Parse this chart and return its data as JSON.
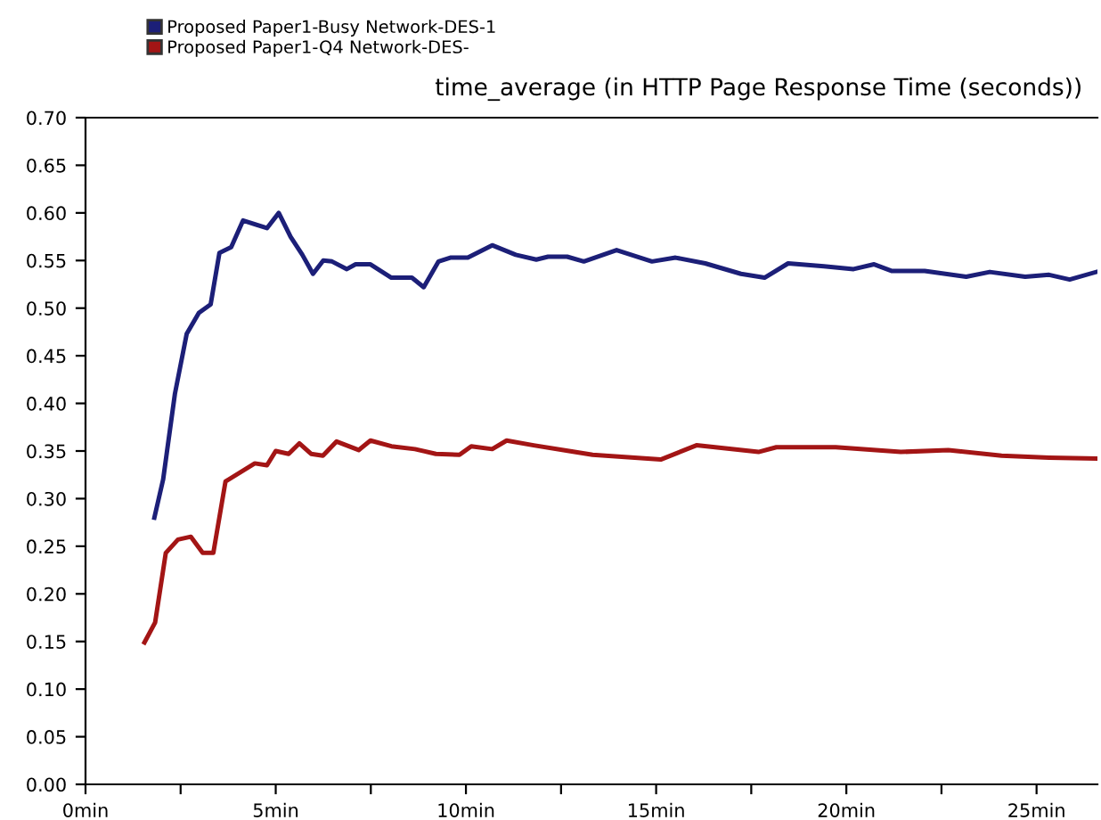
{
  "chart_data": {
    "type": "line",
    "title": "time_average (in HTTP Page Response Time (seconds))",
    "xlim": [
      0,
      26.6
    ],
    "xticks": [
      {
        "value": 0,
        "label": "0min"
      },
      {
        "value": 2.5,
        "label": null
      },
      {
        "value": 5,
        "label": "5min"
      },
      {
        "value": 7.5,
        "label": null
      },
      {
        "value": 10,
        "label": "10min"
      },
      {
        "value": 12.5,
        "label": null
      },
      {
        "value": 15,
        "label": "15min"
      },
      {
        "value": 17.5,
        "label": null
      },
      {
        "value": 20,
        "label": "20min"
      },
      {
        "value": 22.5,
        "label": null
      },
      {
        "value": 25,
        "label": "25min"
      }
    ],
    "ylim": [
      0,
      0.7
    ],
    "yticks": [
      {
        "value": 0,
        "label": "0.00"
      },
      {
        "value": 0.05,
        "label": "0.05"
      },
      {
        "value": 0.1,
        "label": "0.10"
      },
      {
        "value": 0.15,
        "label": "0.15"
      },
      {
        "value": 0.2,
        "label": "0.20"
      },
      {
        "value": 0.25,
        "label": "0.25"
      },
      {
        "value": 0.3,
        "label": "0.30"
      },
      {
        "value": 0.35,
        "label": "0.35"
      },
      {
        "value": 0.4,
        "label": "0.40"
      },
      {
        "value": 0.45,
        "label": "0.45"
      },
      {
        "value": 0.5,
        "label": "0.50"
      },
      {
        "value": 0.55,
        "label": "0.55"
      },
      {
        "value": 0.6,
        "label": "0.60"
      },
      {
        "value": 0.65,
        "label": "0.65"
      },
      {
        "value": 0.7,
        "label": "0.70"
      }
    ],
    "grid": false,
    "legend": "top left",
    "marker": "none",
    "line_style": "solid",
    "series": [
      {
        "name": "Proposed Paper1-Busy Network-DES-1",
        "color": "#1c1f78",
        "x": [
          1.81,
          2.04,
          2.35,
          2.66,
          2.98,
          3.29,
          3.52,
          3.83,
          4.14,
          4.77,
          5.08,
          5.39,
          5.7,
          5.98,
          6.25,
          6.48,
          6.87,
          7.1,
          7.49,
          8.04,
          8.58,
          8.89,
          9.28,
          9.59,
          10.05,
          10.69,
          11.31,
          11.85,
          12.16,
          12.66,
          13.1,
          13.96,
          14.89,
          15.51,
          16.29,
          17.23,
          17.85,
          18.47,
          19.41,
          20.19,
          20.73,
          21.2,
          22.06,
          23.15,
          23.77,
          24.7,
          25.33,
          25.87,
          26.57
        ],
        "values": [
          0.28,
          0.32,
          0.41,
          0.473,
          0.495,
          0.504,
          0.558,
          0.564,
          0.592,
          0.584,
          0.6,
          0.575,
          0.556,
          0.536,
          0.55,
          0.549,
          0.541,
          0.546,
          0.546,
          0.532,
          0.532,
          0.522,
          0.549,
          0.553,
          0.553,
          0.566,
          0.556,
          0.551,
          0.554,
          0.554,
          0.549,
          0.561,
          0.549,
          0.553,
          0.547,
          0.536,
          0.532,
          0.547,
          0.544,
          0.541,
          0.546,
          0.539,
          0.539,
          0.533,
          0.538,
          0.533,
          0.535,
          0.53,
          0.538
        ]
      },
      {
        "name": "Proposed Paper1-Q4 Network-DES-",
        "color": "#a31515",
        "x": [
          1.55,
          1.83,
          2.11,
          2.43,
          2.77,
          3.08,
          3.36,
          3.68,
          4.45,
          4.77,
          5.0,
          5.34,
          5.62,
          5.93,
          6.24,
          6.6,
          7.18,
          7.49,
          8.04,
          8.66,
          9.21,
          9.83,
          10.14,
          10.69,
          11.07,
          11.78,
          12.71,
          13.33,
          15.12,
          16.06,
          17.69,
          18.16,
          19.72,
          21.43,
          22.68,
          24.08,
          25.33,
          26.57
        ],
        "values": [
          0.149,
          0.17,
          0.243,
          0.257,
          0.26,
          0.243,
          0.243,
          0.318,
          0.337,
          0.335,
          0.35,
          0.347,
          0.358,
          0.347,
          0.345,
          0.36,
          0.351,
          0.361,
          0.355,
          0.352,
          0.347,
          0.346,
          0.355,
          0.352,
          0.361,
          0.356,
          0.35,
          0.346,
          0.341,
          0.356,
          0.349,
          0.354,
          0.354,
          0.349,
          0.351,
          0.345,
          0.343,
          0.342
        ]
      }
    ]
  }
}
